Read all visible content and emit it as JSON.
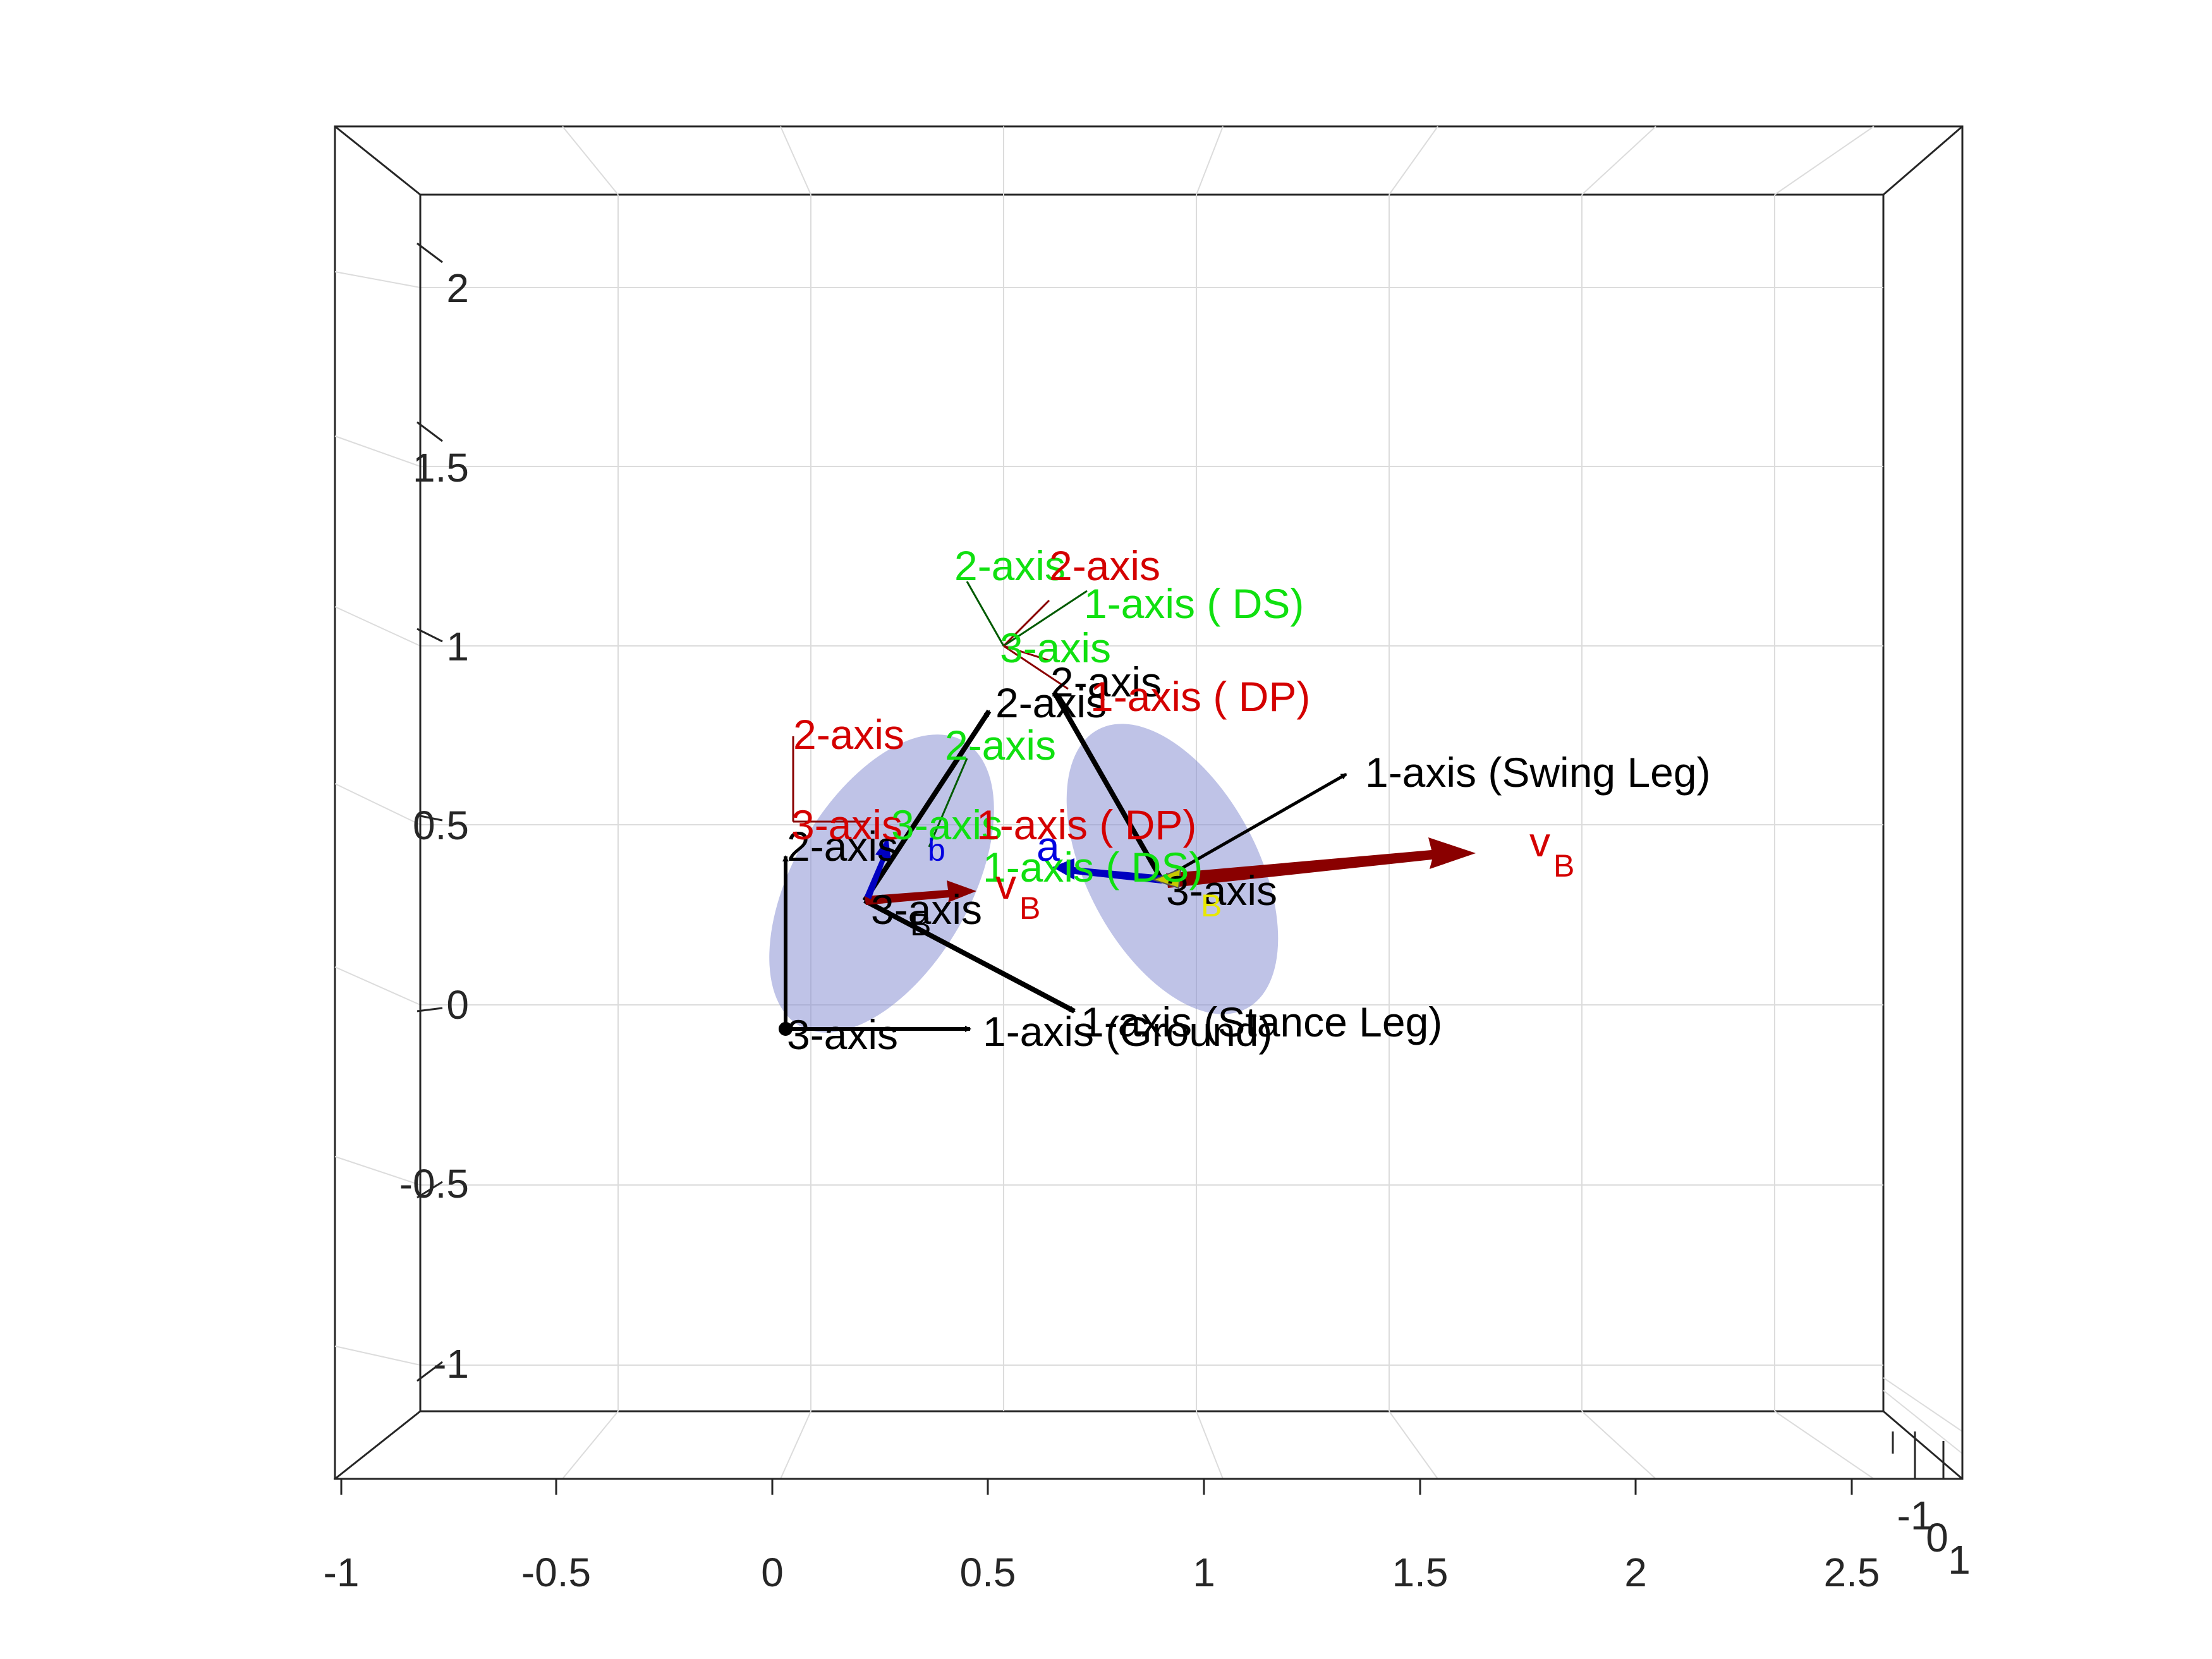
{
  "colors": {
    "black": "#000000",
    "red": "#d40000",
    "green": "#10e010",
    "blue": "#0000e0",
    "yellow": "#e8e800",
    "dark_red": "#8a0000",
    "dark_green": "#005a00",
    "ellipsoid": "#8088d0",
    "grid": "#dcdcdc",
    "axis": "#262626"
  },
  "axes": {
    "x_ticks": [
      "-1",
      "-0.5",
      "0",
      "0.5",
      "1",
      "1.5",
      "2",
      "2.5"
    ],
    "y_ticks": [
      "2",
      "1.5",
      "1",
      "0.5",
      "0",
      "-0.5",
      "-1"
    ],
    "z_ticks": [
      "-1",
      "0",
      "1"
    ]
  },
  "labels": {
    "ground_three": "3-axis",
    "ground_two": "2-axis",
    "ground_one": "1-axis (Ground)",
    "stance_one": "1-axis (Stance Leg)",
    "stance_three": "3-axis",
    "stance_two": "2-axis",
    "swing_one": "1-axis (Swing Leg)",
    "swing_three": "3-axis",
    "swing_two": "2-axis",
    "ds_two": "2-axis",
    "ds_one": "1-axis ( DS)",
    "ds_three": "3-axis",
    "dp_two": "2-axis",
    "dp_one": "1-axis ( DP)",
    "lower_dp_two": "2-axis",
    "lower_ds_two": "2-axis",
    "lower_dp_three": "3-axis",
    "lower_ds_three": "3-axis",
    "lower_dp_one": "1-axis ( DP)",
    "lower_ds_one": "1-axis ( DS)",
    "upper_ds_one": "1-axis ( DS)",
    "vb_big": "v",
    "vb_big_sub": "B",
    "vb_small": "v",
    "vb_small_sub": "B",
    "b_blue": "b",
    "a_blue": "a",
    "b_yellow": "B",
    "b_black": "B"
  }
}
